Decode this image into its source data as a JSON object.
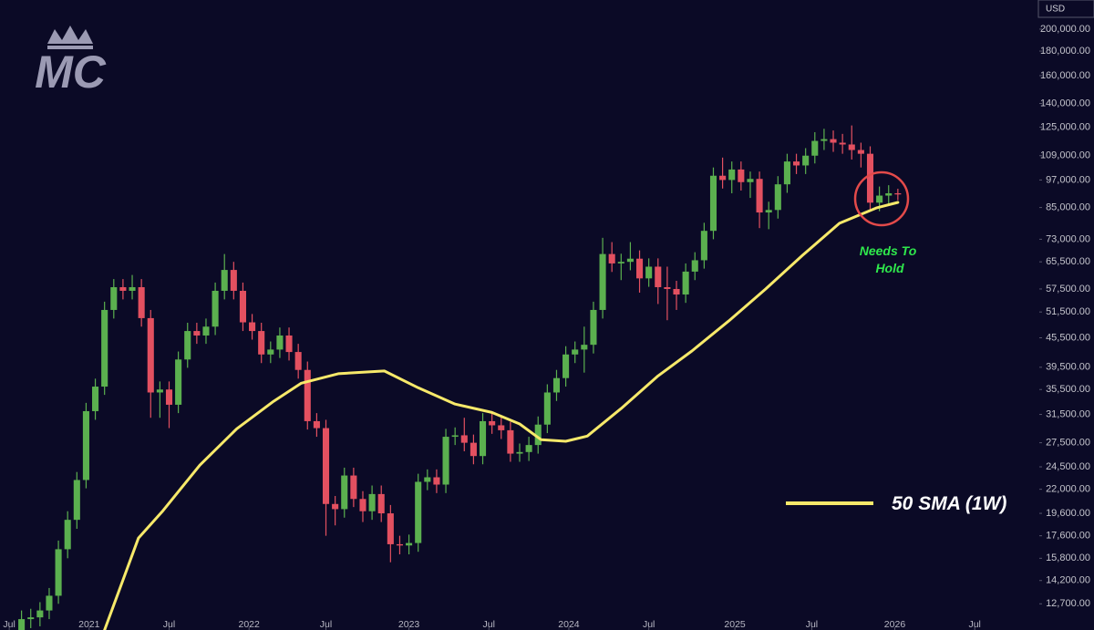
{
  "chart_data": {
    "type": "candlestick",
    "logo": "MC",
    "currency": "USD",
    "log_scale": true,
    "up_color": "#5bb04f",
    "down_color": "#e35060",
    "xlim": [
      0,
      338
    ],
    "xticks": [
      {
        "value": 3,
        "label": "Jul"
      },
      {
        "value": 29,
        "label": "2021"
      },
      {
        "value": 55,
        "label": "Jul"
      },
      {
        "value": 81,
        "label": "2022"
      },
      {
        "value": 106,
        "label": "Jul"
      },
      {
        "value": 133,
        "label": "2023"
      },
      {
        "value": 159,
        "label": "Jul"
      },
      {
        "value": 185,
        "label": "2024"
      },
      {
        "value": 211,
        "label": "Jul"
      },
      {
        "value": 239,
        "label": "2025"
      },
      {
        "value": 264,
        "label": "Jul"
      },
      {
        "value": 291,
        "label": "2026"
      },
      {
        "value": 317,
        "label": "Jul"
      }
    ],
    "ylim": [
      11200,
      230000
    ],
    "yticks": [
      {
        "value": 12700,
        "label": "12,700.00"
      },
      {
        "value": 14200,
        "label": "14,200.00"
      },
      {
        "value": 15800,
        "label": "15,800.00"
      },
      {
        "value": 17600,
        "label": "17,600.00"
      },
      {
        "value": 19600,
        "label": "19,600.00"
      },
      {
        "value": 22000,
        "label": "22,000.00"
      },
      {
        "value": 24500,
        "label": "24,500.00"
      },
      {
        "value": 27500,
        "label": "27,500.00"
      },
      {
        "value": 31500,
        "label": "31,500.00"
      },
      {
        "value": 35500,
        "label": "35,500.00"
      },
      {
        "value": 39500,
        "label": "39,500.00"
      },
      {
        "value": 45500,
        "label": "45,500.00"
      },
      {
        "value": 51500,
        "label": "51,500.00"
      },
      {
        "value": 57500,
        "label": "57,500.00"
      },
      {
        "value": 65500,
        "label": "65,500.00"
      },
      {
        "value": 73000,
        "label": "73,000.00"
      },
      {
        "value": 85000,
        "label": "85,000.00"
      },
      {
        "value": 97000,
        "label": "97,000.00"
      },
      {
        "value": 109000,
        "label": "109,000.00"
      },
      {
        "value": 125000,
        "label": "125,000.00"
      },
      {
        "value": 140000,
        "label": "140,000.00"
      },
      {
        "value": 160000,
        "label": "160,000.00"
      },
      {
        "value": 180000,
        "label": "180,000.00"
      },
      {
        "value": 200000,
        "label": "200,000.00"
      }
    ],
    "x": [
      7,
      10,
      13,
      16,
      19,
      22,
      25,
      28,
      31,
      34,
      37,
      40,
      43,
      46,
      49,
      52,
      55,
      58,
      61,
      64,
      67,
      70,
      73,
      76,
      79,
      82,
      85,
      88,
      91,
      94,
      97,
      100,
      103,
      106,
      109,
      112,
      115,
      118,
      121,
      124,
      127,
      130,
      133,
      136,
      139,
      142,
      145,
      148,
      151,
      154,
      157,
      160,
      163,
      166,
      169,
      172,
      175,
      178,
      181,
      184,
      187,
      190,
      193,
      196,
      199,
      202,
      205,
      208,
      211,
      214,
      217,
      220,
      223,
      226,
      229,
      232,
      235,
      238,
      241,
      244,
      247,
      250,
      253,
      256,
      259,
      262,
      265,
      268,
      271,
      274,
      277,
      280,
      283,
      286,
      289,
      292
    ],
    "open": [
      11200,
      11800,
      11900,
      12300,
      13200,
      16500,
      19000,
      23000,
      32000,
      36000,
      52000,
      58000,
      57000,
      58000,
      50000,
      35000,
      35500,
      33000,
      41000,
      47000,
      46000,
      48000,
      57000,
      63000,
      57000,
      49000,
      47000,
      42000,
      43000,
      46000,
      42500,
      39000,
      30500,
      29500,
      20500,
      20000,
      23500,
      21000,
      19800,
      21500,
      19600,
      16900,
      16800,
      17000,
      22800,
      23300,
      22500,
      28300,
      28500,
      27500,
      25800,
      30500,
      29900,
      29200,
      26100,
      26300,
      27200,
      30000,
      35000,
      37500,
      42000,
      43000,
      44000,
      52000,
      68000,
      65000,
      65500,
      66500,
      60500,
      64000,
      58000,
      57500,
      56000,
      62500,
      66000,
      76000,
      99000,
      97000,
      102000,
      96000,
      97500,
      83000,
      84000,
      95000,
      106000,
      104000,
      109000,
      117000,
      118000,
      116000,
      115000,
      112000,
      110000,
      87000,
      90000,
      91000
    ],
    "high": [
      12300,
      12400,
      12800,
      13700,
      17200,
      19800,
      23900,
      33300,
      37400,
      54100,
      60300,
      60300,
      61500,
      60300,
      52000,
      36900,
      36900,
      42600,
      48900,
      48900,
      49900,
      59300,
      68000,
      65500,
      59300,
      51000,
      48900,
      44700,
      47800,
      47800,
      44200,
      40600,
      31700,
      30700,
      21300,
      24400,
      24400,
      21800,
      22400,
      22400,
      20400,
      17600,
      17700,
      23700,
      24200,
      24200,
      29400,
      29600,
      31000,
      28600,
      31700,
      31700,
      31100,
      30400,
      27400,
      28300,
      31200,
      36400,
      39000,
      43700,
      44700,
      48000,
      54100,
      73500,
      72000,
      68100,
      72000,
      69200,
      66600,
      66600,
      64000,
      59800,
      65000,
      68600,
      79000,
      103000,
      108000,
      106000,
      106000,
      101000,
      101000,
      87400,
      98800,
      110000,
      110000,
      113000,
      122000,
      124000,
      123000,
      121000,
      126000,
      116000,
      114000,
      94000,
      94600,
      93000
    ],
    "low": [
      10800,
      11300,
      11400,
      11800,
      12700,
      15800,
      18200,
      22100,
      30700,
      34600,
      49900,
      54700,
      54700,
      48000,
      31000,
      31000,
      29500,
      31700,
      39400,
      44200,
      44200,
      46100,
      54700,
      54700,
      47000,
      45100,
      40300,
      40300,
      41300,
      40800,
      37400,
      29300,
      28300,
      17600,
      18500,
      19200,
      20200,
      18800,
      19000,
      18800,
      15500,
      16100,
      16100,
      16300,
      21900,
      21600,
      21600,
      27200,
      26400,
      24800,
      24800,
      28700,
      28000,
      25100,
      25100,
      25200,
      26100,
      28800,
      33600,
      36000,
      40300,
      38500,
      42200,
      49900,
      62400,
      60000,
      62900,
      56500,
      58100,
      53500,
      49500,
      52000,
      53800,
      60000,
      63400,
      73000,
      93100,
      91000,
      92200,
      89000,
      77000,
      76600,
      80600,
      91200,
      99800,
      99800,
      105000,
      112000,
      111000,
      110000,
      107000,
      103000,
      84000,
      83500,
      86400,
      88000
    ],
    "close": [
      11800,
      11900,
      12300,
      13200,
      16500,
      19000,
      23000,
      32000,
      36000,
      52000,
      58000,
      57000,
      58000,
      50000,
      35000,
      35500,
      33000,
      41000,
      47000,
      46000,
      48000,
      57000,
      63000,
      57000,
      49000,
      47000,
      42000,
      43000,
      46000,
      42500,
      39000,
      30500,
      29500,
      20500,
      20000,
      23500,
      21000,
      19800,
      21500,
      19600,
      16900,
      16800,
      17000,
      22800,
      23300,
      22500,
      28300,
      28500,
      27500,
      25800,
      30500,
      29900,
      29200,
      26100,
      26300,
      27200,
      30000,
      35000,
      37500,
      42000,
      43000,
      44000,
      52000,
      68000,
      65000,
      65500,
      66500,
      60500,
      64000,
      58000,
      57500,
      56000,
      62500,
      66000,
      76000,
      99000,
      97000,
      102000,
      96000,
      97500,
      83000,
      84000,
      95000,
      106000,
      104000,
      109000,
      117000,
      118000,
      116000,
      115000,
      112000,
      110000,
      87000,
      90000,
      91000,
      90500
    ],
    "series": [
      {
        "name": "50 SMA (1W)",
        "color": "#f7e96a",
        "x": [
          34,
          45,
          53,
          65,
          77,
          89,
          98,
          110,
          125,
          136,
          148,
          160,
          169,
          176,
          184,
          191,
          202,
          214,
          225,
          237,
          249,
          261,
          273,
          285,
          292
        ],
        "values": [
          11200,
          17400,
          19850,
          24700,
          29400,
          33550,
          36600,
          38300,
          38800,
          35800,
          33100,
          31800,
          30100,
          27900,
          27700,
          28400,
          32400,
          37900,
          42700,
          49300,
          57500,
          67600,
          78800,
          84800,
          87100
        ]
      }
    ],
    "annotation": [
      "Needs To",
      "Hold"
    ]
  }
}
